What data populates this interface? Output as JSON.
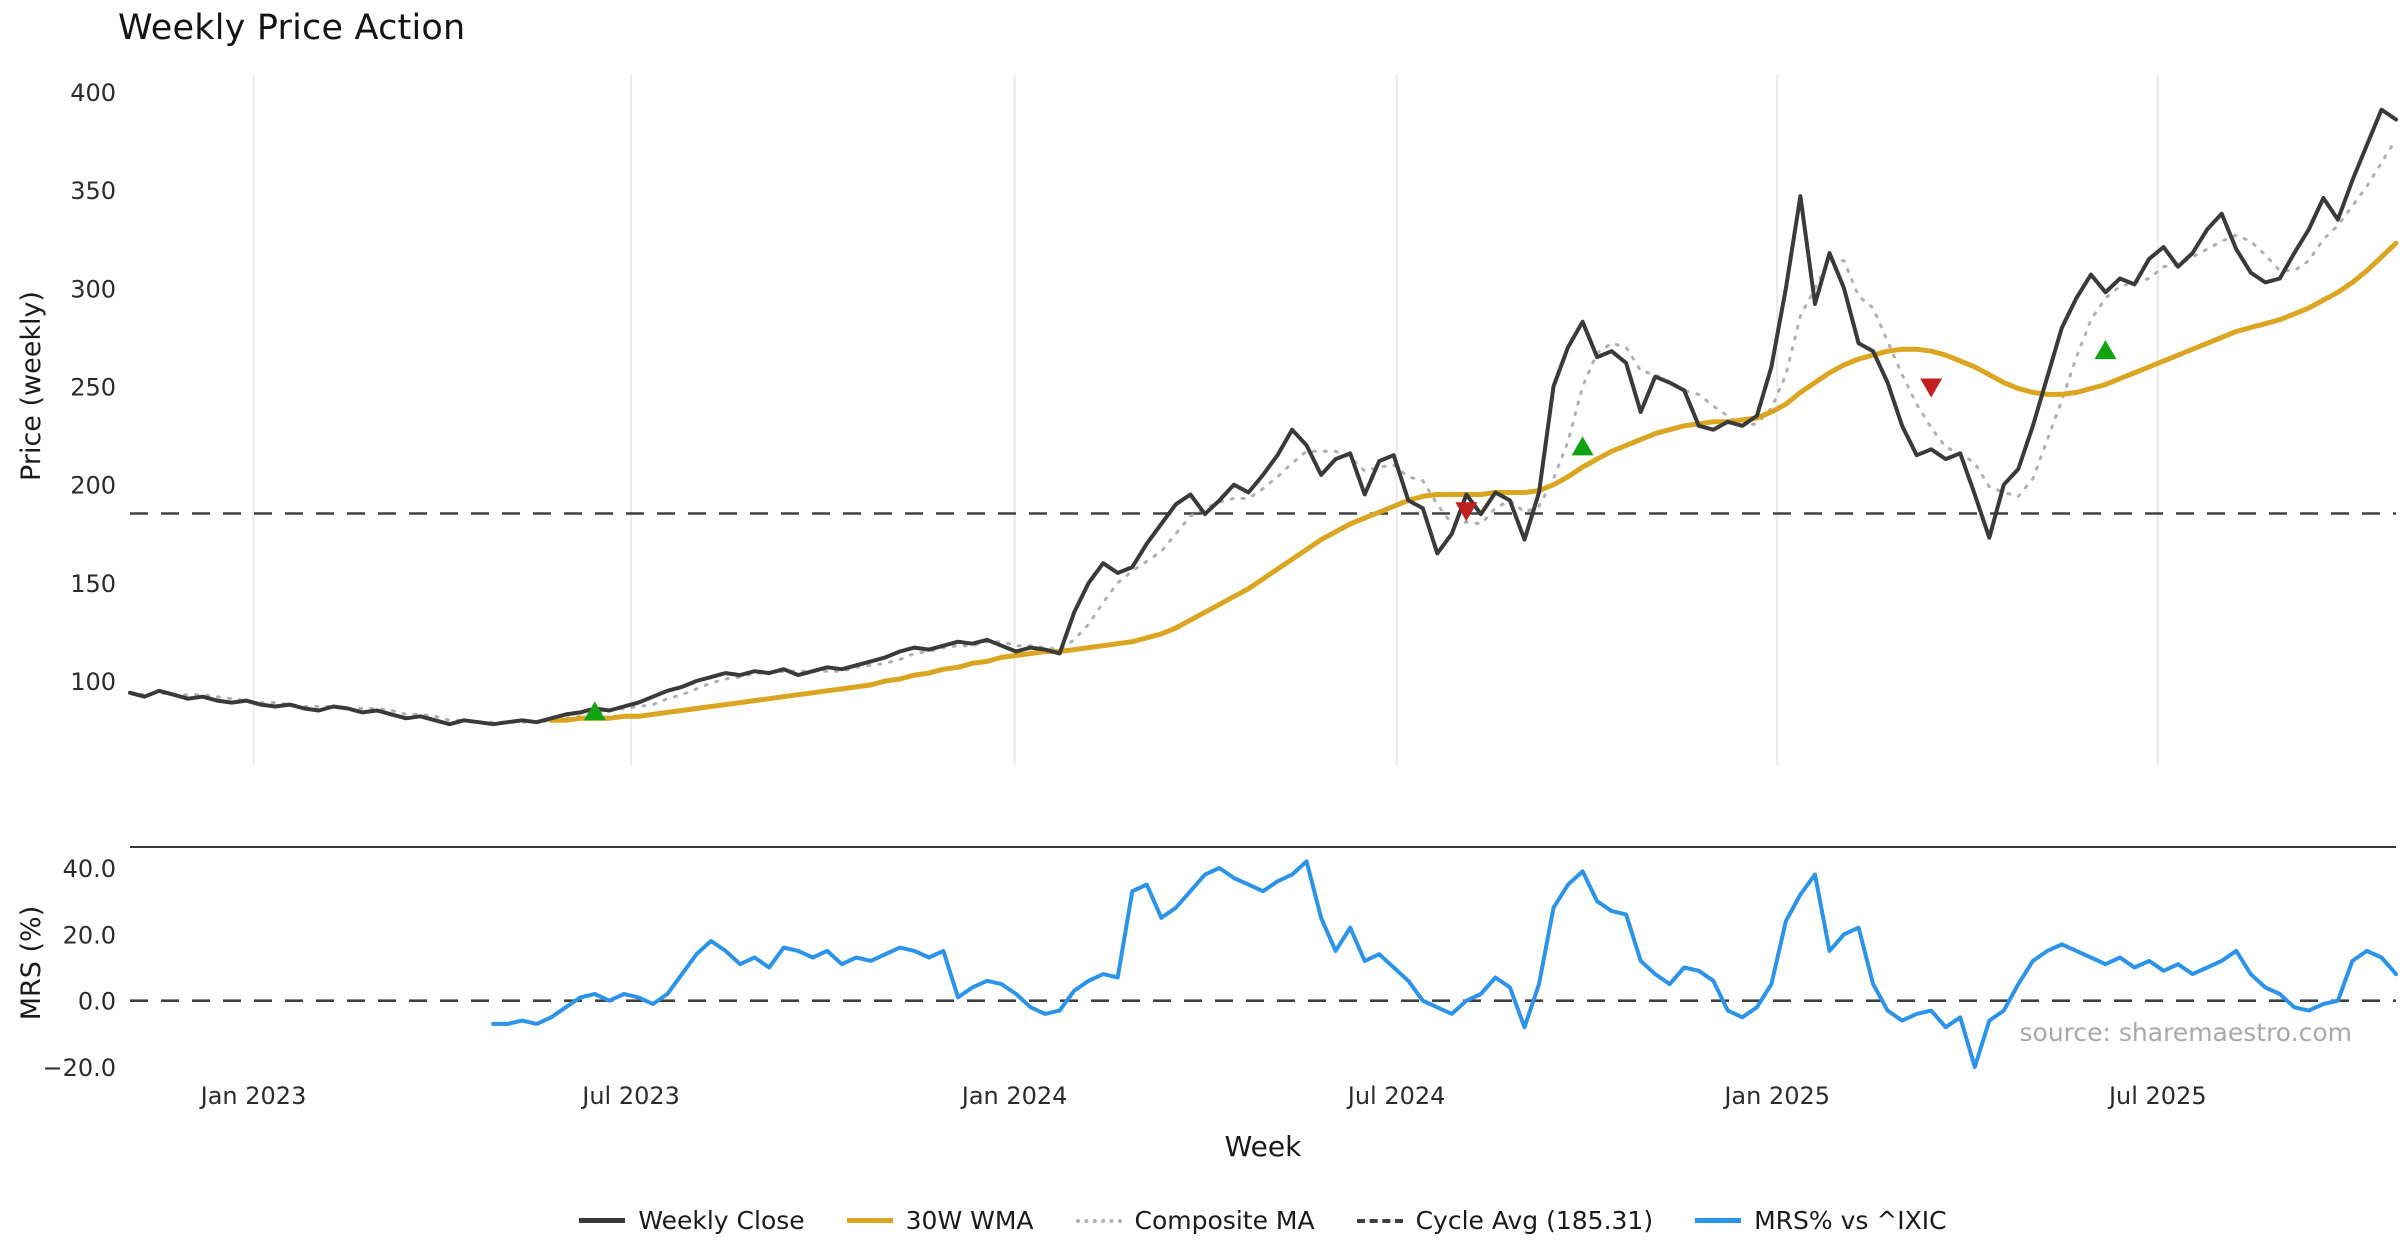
{
  "chart_data": {
    "type": "line",
    "title": "Weekly Price Action",
    "xlabel": "Week",
    "source": "source: sharemaestro.com",
    "n_weeks": 157,
    "axes": {
      "price": {
        "label": "Price (weekly)",
        "ylim": [
          57,
          409
        ],
        "ticks": [
          {
            "value": 400,
            "label": "400"
          },
          {
            "value": 350,
            "label": "350"
          },
          {
            "value": 300,
            "label": "300"
          },
          {
            "value": 250,
            "label": "250"
          },
          {
            "value": 200,
            "label": "200"
          },
          {
            "value": 150,
            "label": "150"
          },
          {
            "value": 100,
            "label": "100"
          }
        ]
      },
      "mrs": {
        "label": "MRS (%)",
        "ylim": [
          -22,
          46
        ],
        "ticks": [
          {
            "value": 40,
            "label": "40.0"
          },
          {
            "value": 20,
            "label": "20.0"
          },
          {
            "value": 0,
            "label": "0.0"
          },
          {
            "value": -20,
            "label": "−20.0"
          }
        ]
      },
      "x": {
        "ticks": [
          {
            "week": 8.5,
            "label": "Jan 2023"
          },
          {
            "week": 34.5,
            "label": "Jul 2023"
          },
          {
            "week": 60.9,
            "label": "Jan 2024"
          },
          {
            "week": 87.2,
            "label": "Jul 2024"
          },
          {
            "week": 113.4,
            "label": "Jan 2025"
          },
          {
            "week": 139.6,
            "label": "Jul 2025"
          }
        ]
      }
    },
    "grid": "vertical-light-gray-price-panel-only",
    "legend_position": "bottom-center",
    "series": [
      {
        "name": "Weekly Close",
        "panel": "price",
        "color": "#3a3a3a",
        "style": "solid",
        "start_week": 0,
        "values": [
          94,
          92,
          95,
          93,
          91,
          92,
          90,
          89,
          90,
          88,
          87,
          88,
          86,
          85,
          87,
          86,
          84,
          85,
          83,
          81,
          82,
          80,
          78,
          80,
          79,
          78,
          79,
          80,
          79,
          81,
          83,
          84,
          86,
          85,
          87,
          89,
          92,
          95,
          97,
          100,
          102,
          104,
          103,
          105,
          104,
          106,
          103,
          105,
          107,
          106,
          108,
          110,
          112,
          115,
          117,
          116,
          118,
          120,
          119,
          121,
          118,
          115,
          117,
          116,
          114,
          135,
          150,
          160,
          155,
          158,
          170,
          180,
          190,
          195,
          185,
          192,
          200,
          196,
          205,
          215,
          228,
          220,
          205,
          213,
          216,
          195,
          212,
          215,
          192,
          188,
          165,
          175,
          195,
          185,
          196,
          192,
          172,
          196,
          250,
          270,
          283,
          265,
          268,
          262,
          237,
          255,
          252,
          248,
          230,
          228,
          232,
          230,
          235,
          260,
          300,
          347,
          292,
          318,
          300,
          272,
          268,
          252,
          230,
          215,
          218,
          213,
          216,
          195,
          173,
          200,
          208,
          230,
          255,
          280,
          295,
          307,
          298,
          305,
          302,
          315,
          321,
          311,
          318,
          330,
          338,
          320,
          308,
          303,
          305,
          318,
          330,
          346,
          335,
          355,
          373,
          391,
          386
        ]
      },
      {
        "name": "30W WMA",
        "panel": "price",
        "color": "#daa520",
        "style": "solid",
        "start_week": 29,
        "values": [
          80,
          80,
          81,
          81,
          81,
          82,
          82,
          83,
          84,
          85,
          86,
          87,
          88,
          89,
          90,
          91,
          92,
          93,
          94,
          95,
          96,
          97,
          98,
          100,
          101,
          103,
          104,
          106,
          107,
          109,
          110,
          112,
          113,
          114,
          115,
          115,
          116,
          117,
          118,
          119,
          120,
          122,
          124,
          127,
          131,
          135,
          139,
          143,
          147,
          152,
          157,
          162,
          167,
          172,
          176,
          180,
          183,
          186,
          189,
          192,
          194,
          195,
          195,
          195,
          195,
          196,
          196,
          196,
          197,
          200,
          204,
          209,
          213,
          217,
          220,
          223,
          226,
          228,
          230,
          231,
          232,
          232,
          233,
          234,
          237,
          241,
          247,
          252,
          257,
          261,
          264,
          266,
          268,
          269,
          269,
          268,
          266,
          263,
          260,
          256,
          252,
          249,
          247,
          246,
          246,
          247,
          249,
          251,
          254,
          257,
          260,
          263,
          266,
          269,
          272,
          275,
          278,
          280,
          282,
          284,
          287,
          290,
          294,
          298,
          303,
          309,
          316,
          323
        ]
      },
      {
        "name": "Composite MA",
        "panel": "price",
        "color": "#b0b0b0",
        "style": "dotted",
        "start_week": 0,
        "values": [
          94,
          93,
          94,
          93,
          93,
          93,
          92,
          91,
          90,
          89,
          89,
          88,
          87,
          87,
          87,
          86,
          86,
          86,
          85,
          83,
          83,
          82,
          80,
          80,
          79,
          79,
          79,
          79,
          79,
          80,
          81,
          82,
          84,
          85,
          86,
          87,
          88,
          91,
          93,
          96,
          99,
          101,
          102,
          104,
          104,
          105,
          105,
          105,
          105,
          105,
          107,
          108,
          109,
          111,
          114,
          115,
          117,
          118,
          118,
          120,
          120,
          118,
          118,
          117,
          116,
          121,
          129,
          140,
          150,
          156,
          161,
          166,
          175,
          184,
          188,
          191,
          193,
          193,
          198,
          204,
          211,
          217,
          217,
          217,
          214,
          207,
          209,
          210,
          204,
          202,
          190,
          180,
          181,
          180,
          188,
          192,
          186,
          189,
          203,
          222,
          250,
          267,
          272,
          270,
          258,
          256,
          252,
          248,
          246,
          240,
          235,
          230,
          231,
          239,
          256,
          286,
          300,
          314,
          314,
          296,
          290,
          273,
          256,
          241,
          229,
          219,
          216,
          211,
          199,
          196,
          194,
          203,
          223,
          243,
          265,
          284,
          295,
          301,
          303,
          305,
          311,
          312,
          316,
          320,
          324,
          327,
          324,
          317,
          309,
          309,
          314,
          325,
          332,
          342,
          352,
          364,
          376
        ]
      },
      {
        "name": "Cycle Avg",
        "panel": "price",
        "color": "#404040",
        "style": "dashed",
        "constant": 185.31
      },
      {
        "name": "MRS% vs ^IXIC",
        "panel": "mrs",
        "color": "#2b94ea",
        "style": "solid",
        "start_week": 25,
        "values": [
          -7,
          -7,
          -6,
          -7,
          -5,
          -2,
          1,
          2,
          0,
          2,
          1,
          -1,
          2,
          8,
          14,
          18,
          15,
          11,
          13,
          10,
          16,
          15,
          13,
          15,
          11,
          13,
          12,
          14,
          16,
          15,
          13,
          15,
          1,
          4,
          6,
          5,
          2,
          -2,
          -4,
          -3,
          3,
          6,
          8,
          7,
          33,
          35,
          25,
          28,
          33,
          38,
          40,
          37,
          35,
          33,
          36,
          38,
          42,
          25,
          15,
          22,
          12,
          14,
          10,
          6,
          0,
          -2,
          -4,
          0,
          2,
          7,
          4,
          -8,
          5,
          28,
          35,
          39,
          30,
          27,
          26,
          12,
          8,
          5,
          10,
          9,
          6,
          -3,
          -5,
          -2,
          5,
          24,
          32,
          38,
          15,
          20,
          22,
          5,
          -3,
          -6,
          -4,
          -3,
          -8,
          -5,
          -20,
          -6,
          -3,
          5,
          12,
          15,
          17,
          15,
          13,
          11,
          13,
          10,
          12,
          9,
          11,
          8,
          10,
          12,
          15,
          8,
          4,
          2,
          -2,
          -3,
          -1,
          0,
          12,
          15,
          13,
          8
        ]
      }
    ],
    "zero_line": {
      "panel": "mrs",
      "value": 0,
      "style": "dashed",
      "color": "#404040"
    },
    "signals": {
      "buy": {
        "marker": "triangle-up",
        "color": "#12a312",
        "points": [
          {
            "week": 32,
            "price": 84
          },
          {
            "week": 100,
            "price": 219
          },
          {
            "week": 136,
            "price": 268
          }
        ]
      },
      "sell": {
        "marker": "triangle-down",
        "color": "#c21f1f",
        "points": [
          {
            "week": 92,
            "price": 187
          },
          {
            "week": 124,
            "price": 250
          }
        ]
      }
    }
  },
  "legend": {
    "items": [
      {
        "label": "Weekly Close",
        "color": "#3a3a3a",
        "style": "solid"
      },
      {
        "label": "30W WMA",
        "color": "#daa520",
        "style": "solid"
      },
      {
        "label": "Composite MA",
        "color": "#b0b0b0",
        "style": "dotted"
      },
      {
        "label": "Cycle Avg (185.31)",
        "color": "#404040",
        "style": "dashed"
      },
      {
        "label": "MRS% vs ^IXIC",
        "color": "#2b94ea",
        "style": "solid"
      }
    ]
  }
}
